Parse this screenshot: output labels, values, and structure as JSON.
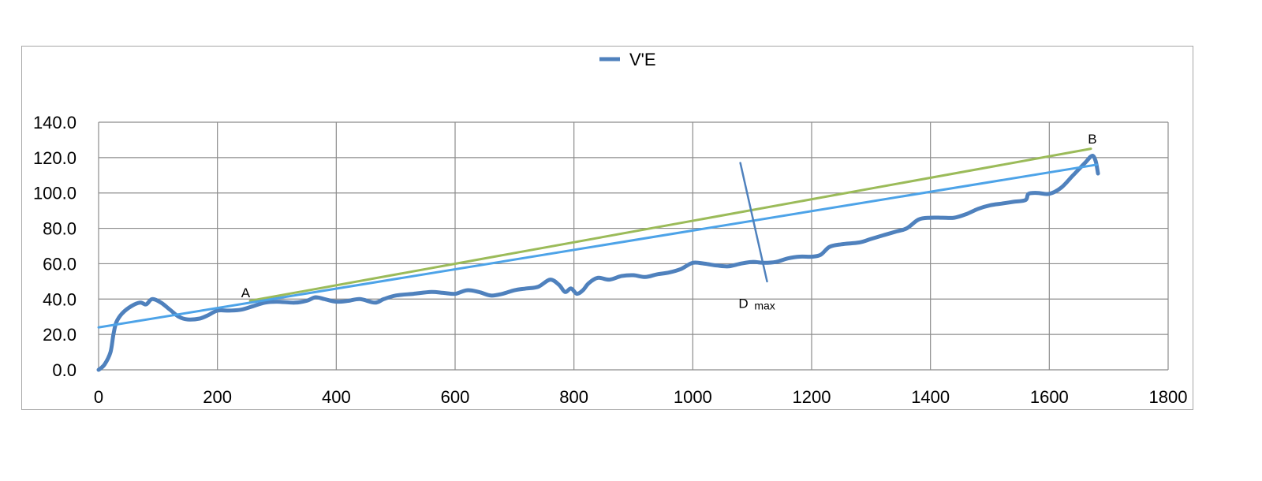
{
  "chart_data": {
    "type": "line",
    "title": "",
    "xlabel": "",
    "ylabel": "",
    "xlim": [
      0,
      1800
    ],
    "ylim": [
      0,
      140
    ],
    "x_ticks": [
      0,
      200,
      400,
      600,
      800,
      1000,
      1200,
      1400,
      1600,
      1800
    ],
    "y_ticks": [
      0,
      20,
      40,
      60,
      80,
      100,
      120,
      140
    ],
    "x_tick_labels": [
      "0",
      "200",
      "400",
      "600",
      "800",
      "1000",
      "1200",
      "1400",
      "1600",
      "1800"
    ],
    "y_tick_labels": [
      "0.0",
      "20.0",
      "40.0",
      "60.0",
      "80.0",
      "100.0",
      "120.0",
      "140.0"
    ],
    "grid": true,
    "legend": {
      "placement": "top-center",
      "entries": [
        "V'E"
      ]
    },
    "series": [
      {
        "name": "V'E",
        "color": "#4f81bd",
        "points": [
          [
            0,
            0
          ],
          [
            10,
            3
          ],
          [
            20,
            10
          ],
          [
            25,
            20
          ],
          [
            30,
            27
          ],
          [
            40,
            32
          ],
          [
            55,
            36
          ],
          [
            70,
            38
          ],
          [
            80,
            37
          ],
          [
            90,
            40
          ],
          [
            105,
            38
          ],
          [
            120,
            34
          ],
          [
            135,
            30
          ],
          [
            150,
            28.5
          ],
          [
            170,
            29
          ],
          [
            185,
            31
          ],
          [
            200,
            33.5
          ],
          [
            220,
            33.5
          ],
          [
            240,
            34
          ],
          [
            260,
            36
          ],
          [
            280,
            38
          ],
          [
            300,
            38.5
          ],
          [
            330,
            38
          ],
          [
            350,
            39
          ],
          [
            365,
            41
          ],
          [
            380,
            40
          ],
          [
            400,
            38.5
          ],
          [
            420,
            39
          ],
          [
            440,
            40
          ],
          [
            465,
            38
          ],
          [
            480,
            40
          ],
          [
            500,
            42
          ],
          [
            530,
            43
          ],
          [
            560,
            44
          ],
          [
            580,
            43.5
          ],
          [
            600,
            43
          ],
          [
            620,
            45
          ],
          [
            640,
            44
          ],
          [
            660,
            42
          ],
          [
            680,
            43
          ],
          [
            700,
            45
          ],
          [
            720,
            46
          ],
          [
            740,
            47
          ],
          [
            760,
            51
          ],
          [
            775,
            48
          ],
          [
            785,
            44
          ],
          [
            795,
            46
          ],
          [
            805,
            43
          ],
          [
            815,
            45
          ],
          [
            825,
            49
          ],
          [
            840,
            52
          ],
          [
            860,
            51
          ],
          [
            880,
            53
          ],
          [
            900,
            53.5
          ],
          [
            920,
            52.5
          ],
          [
            940,
            54
          ],
          [
            960,
            55
          ],
          [
            980,
            57
          ],
          [
            1000,
            60.5
          ],
          [
            1020,
            60
          ],
          [
            1040,
            59
          ],
          [
            1060,
            58.5
          ],
          [
            1080,
            60
          ],
          [
            1100,
            61
          ],
          [
            1120,
            60.5
          ],
          [
            1140,
            61
          ],
          [
            1160,
            63
          ],
          [
            1180,
            64
          ],
          [
            1200,
            64
          ],
          [
            1215,
            65
          ],
          [
            1230,
            69.5
          ],
          [
            1250,
            71
          ],
          [
            1280,
            72
          ],
          [
            1300,
            74
          ],
          [
            1320,
            76
          ],
          [
            1340,
            78
          ],
          [
            1360,
            80
          ],
          [
            1380,
            85
          ],
          [
            1400,
            86
          ],
          [
            1420,
            86
          ],
          [
            1440,
            86
          ],
          [
            1460,
            88
          ],
          [
            1480,
            91
          ],
          [
            1500,
            93
          ],
          [
            1520,
            94
          ],
          [
            1540,
            95
          ],
          [
            1560,
            96
          ],
          [
            1565,
            99.5
          ],
          [
            1580,
            100
          ],
          [
            1600,
            99.5
          ],
          [
            1620,
            103
          ],
          [
            1640,
            110
          ],
          [
            1660,
            117
          ],
          [
            1672,
            121
          ],
          [
            1678,
            118
          ],
          [
            1682,
            111
          ]
        ]
      }
    ],
    "annotations": {
      "trend_line": {
        "color": "#4da3e8",
        "points": [
          [
            0,
            24
          ],
          [
            1680,
            116
          ]
        ]
      },
      "chord_line": {
        "color": "#9bbb59",
        "points": [
          [
            255,
            39
          ],
          [
            1670,
            125
          ]
        ]
      },
      "distance_marker": {
        "color": "#4f81bd",
        "points": [
          [
            1080,
            117
          ],
          [
            1125,
            50
          ]
        ]
      },
      "label_A": {
        "text": "A",
        "x": 240,
        "y": 41
      },
      "label_B": {
        "text": "B",
        "x": 1665,
        "y": 128
      },
      "label_Dmax": {
        "text": "D",
        "subscript": "max",
        "x": 1077,
        "y": 35
      }
    }
  }
}
